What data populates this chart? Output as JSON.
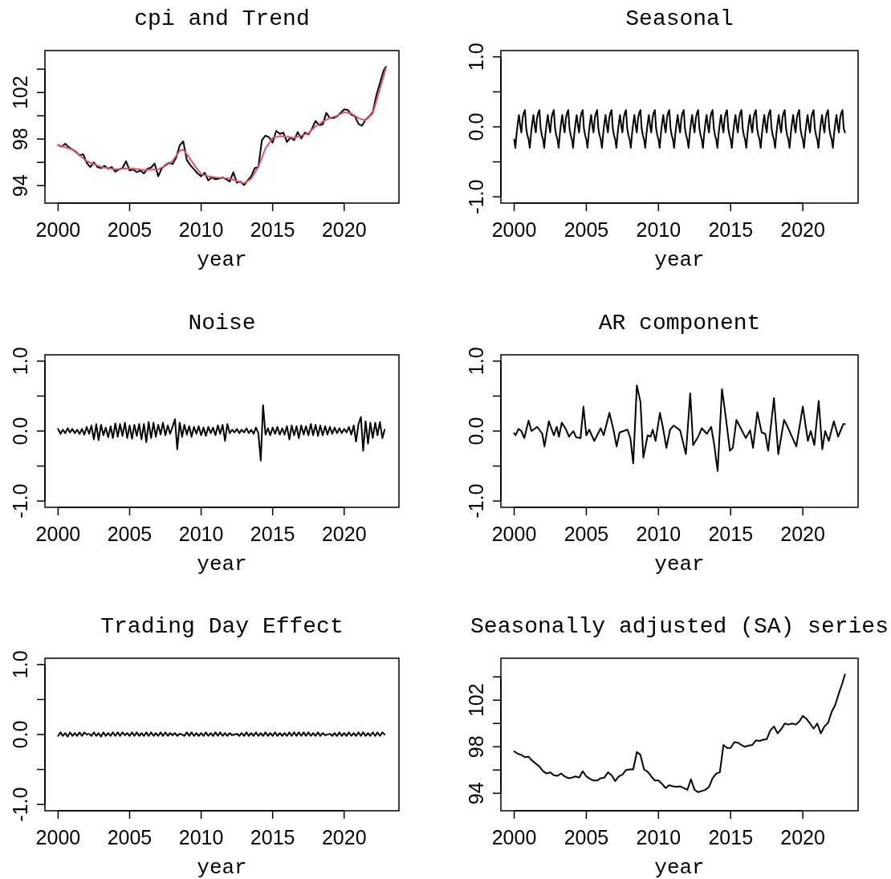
{
  "chart_data": [
    {
      "type": "line",
      "title": "cpi and Trend",
      "xlabel": "year",
      "xlim": [
        1999.08,
        2023.83
      ],
      "xticks": [
        2000,
        2005,
        2010,
        2015,
        2020
      ],
      "ylim": [
        92.5,
        105.6
      ],
      "yticks": [
        94,
        {
          "value": 96,
          "label": null
        },
        98,
        {
          "value": 100,
          "label": null
        },
        102,
        {
          "value": 104,
          "label": null
        }
      ],
      "series": [
        {
          "color": "#000000",
          "x": [
            2000,
            2000.25,
            2000.5,
            2000.75,
            2001,
            2001.25,
            2001.5,
            2001.75,
            2002,
            2002.25,
            2002.5,
            2002.75,
            2003,
            2003.25,
            2003.5,
            2003.75,
            2004,
            2004.25,
            2004.5,
            2004.75,
            2005,
            2005.25,
            2005.5,
            2005.75,
            2006,
            2006.25,
            2006.5,
            2006.75,
            2007,
            2007.25,
            2007.5,
            2007.75,
            2008,
            2008.25,
            2008.5,
            2008.75,
            2009,
            2009.25,
            2009.5,
            2009.75,
            2010,
            2010.25,
            2010.5,
            2010.75,
            2011,
            2011.25,
            2011.5,
            2011.75,
            2012,
            2012.25,
            2012.5,
            2012.75,
            2013,
            2013.25,
            2013.5,
            2013.75,
            2014,
            2014.25,
            2014.5,
            2014.75,
            2015,
            2015.25,
            2015.5,
            2015.75,
            2016,
            2016.25,
            2016.5,
            2016.75,
            2017,
            2017.25,
            2017.5,
            2017.75,
            2018,
            2018.25,
            2018.5,
            2018.75,
            2019,
            2019.25,
            2019.5,
            2019.75,
            2020,
            2020.25,
            2020.5,
            2020.75,
            2021,
            2021.25,
            2021.5,
            2021.75,
            2022,
            2022.25,
            2022.5,
            2022.75,
            2022.92
          ],
          "values": [
            97.47,
            97.35,
            97.6,
            97.3,
            97.1,
            96.9,
            96.6,
            96.7,
            95.95,
            95.6,
            96.0,
            95.6,
            95.5,
            95.7,
            95.45,
            95.6,
            95.2,
            95.4,
            95.5,
            96.1,
            95.3,
            95.4,
            95.15,
            95.3,
            95.05,
            95.45,
            95.55,
            95.9,
            94.8,
            95.5,
            95.75,
            95.95,
            95.85,
            96.4,
            97.45,
            97.8,
            96.2,
            95.75,
            95.4,
            95.05,
            94.8,
            95.1,
            94.45,
            94.7,
            94.55,
            94.6,
            94.7,
            94.55,
            94.35,
            95.15,
            94.25,
            94.35,
            94.05,
            94.45,
            94.8,
            95.5,
            95.6,
            97.9,
            98.3,
            98.15,
            97.7,
            98.7,
            98.45,
            98.55,
            97.75,
            98.15,
            97.9,
            98.6,
            98.05,
            98.55,
            98.4,
            98.9,
            99.55,
            99.2,
            99.25,
            100.25,
            99.8,
            99.8,
            99.95,
            100.25,
            100.55,
            100.5,
            100.1,
            99.95,
            99.3,
            99.15,
            99.65,
            99.95,
            100.3,
            101.75,
            102.8,
            103.85,
            104.2
          ]
        },
        {
          "color": "#df536b",
          "x": [
            2000,
            2001,
            2002,
            2003,
            2004,
            2005,
            2006,
            2007,
            2007.5,
            2008,
            2008.5,
            2008.75,
            2009,
            2009.5,
            2010,
            2010.5,
            2011,
            2012,
            2012.5,
            2013,
            2013.5,
            2014,
            2014.5,
            2015,
            2015.5,
            2016,
            2016.5,
            2017,
            2017.5,
            2018,
            2018.5,
            2019,
            2019.5,
            2020,
            2020.5,
            2021,
            2021.5,
            2022,
            2022.5,
            2022.92
          ],
          "values": [
            97.5,
            97.1,
            96.1,
            95.6,
            95.4,
            95.5,
            95.35,
            95.4,
            95.7,
            96.1,
            97.0,
            97.1,
            96.7,
            95.8,
            95.0,
            94.8,
            94.7,
            94.6,
            94.4,
            94.2,
            94.6,
            95.6,
            97.2,
            98.1,
            98.25,
            98.2,
            98.1,
            98.3,
            98.5,
            99.1,
            99.5,
            99.8,
            100.0,
            100.3,
            100.2,
            99.8,
            99.6,
            100.2,
            102.3,
            104.1
          ]
        }
      ]
    },
    {
      "type": "line",
      "title": "Seasonal",
      "xlabel": "year",
      "xlim": [
        1999.08,
        2023.83
      ],
      "xticks": [
        2000,
        2005,
        2010,
        2015,
        2020
      ],
      "ylim": [
        -1.09,
        1.09
      ],
      "yticks": [
        {
          "value": -1,
          "label": "-1.0"
        },
        {
          "value": -0.5,
          "label": null
        },
        {
          "value": 0,
          "label": "0.0"
        },
        {
          "value": 0.5,
          "label": null
        },
        {
          "value": 1,
          "label": "1.0"
        }
      ],
      "x": [
        2000,
        2000.083,
        2000.167,
        2000.25,
        2000.333,
        2000.417,
        2000.5,
        2000.583,
        2000.667,
        2000.75,
        2000.833,
        2000.917,
        2001,
        2001.083,
        2001.167,
        2001.25,
        2001.333,
        2001.417,
        2001.5,
        2001.583,
        2001.667,
        2001.75,
        2001.833,
        2001.917,
        2002,
        2002.083,
        2002.167,
        2002.25,
        2002.333,
        2002.417,
        2002.5,
        2002.583,
        2002.667,
        2002.75,
        2002.833,
        2002.917,
        2003,
        2003.083,
        2003.167,
        2003.25,
        2003.333,
        2003.417,
        2003.5,
        2003.583,
        2003.667,
        2003.75,
        2003.833,
        2003.917,
        2004,
        2004.083,
        2004.167,
        2004.25,
        2004.333,
        2004.417,
        2004.5,
        2004.583,
        2004.667,
        2004.75,
        2004.833,
        2004.917,
        2005,
        2005.083,
        2005.167,
        2005.25,
        2005.333,
        2005.417,
        2005.5,
        2005.583,
        2005.667,
        2005.75,
        2005.833,
        2005.917,
        2006,
        2006.083,
        2006.167,
        2006.25,
        2006.333,
        2006.417,
        2006.5,
        2006.583,
        2006.667,
        2006.75,
        2006.833,
        2006.917,
        2007,
        2007.083,
        2007.167,
        2007.25,
        2007.333,
        2007.417,
        2007.5,
        2007.583,
        2007.667,
        2007.75,
        2007.833,
        2007.917,
        2008,
        2008.083,
        2008.167,
        2008.25,
        2008.333,
        2008.417,
        2008.5,
        2008.583,
        2008.667,
        2008.75,
        2008.833,
        2008.917,
        2009,
        2009.083,
        2009.167,
        2009.25,
        2009.333,
        2009.417,
        2009.5,
        2009.583,
        2009.667,
        2009.75,
        2009.833,
        2009.917,
        2010,
        2010.083,
        2010.167,
        2010.25,
        2010.333,
        2010.417,
        2010.5,
        2010.583,
        2010.667,
        2010.75,
        2010.833,
        2010.917,
        2011,
        2011.083,
        2011.167,
        2011.25,
        2011.333,
        2011.417,
        2011.5,
        2011.583,
        2011.667,
        2011.75,
        2011.833,
        2011.917,
        2012,
        2012.083,
        2012.167,
        2012.25,
        2012.333,
        2012.417,
        2012.5,
        2012.583,
        2012.667,
        2012.75,
        2012.833,
        2012.917,
        2013,
        2013.083,
        2013.167,
        2013.25,
        2013.333,
        2013.417,
        2013.5,
        2013.583,
        2013.667,
        2013.75,
        2013.833,
        2013.917,
        2014,
        2014.083,
        2014.167,
        2014.25,
        2014.333,
        2014.417,
        2014.5,
        2014.583,
        2014.667,
        2014.75,
        2014.833,
        2014.917,
        2015,
        2015.083,
        2015.167,
        2015.25,
        2015.333,
        2015.417,
        2015.5,
        2015.583,
        2015.667,
        2015.75,
        2015.833,
        2015.917,
        2016,
        2016.083,
        2016.167,
        2016.25,
        2016.333,
        2016.417,
        2016.5,
        2016.583,
        2016.667,
        2016.75,
        2016.833,
        2016.917,
        2017,
        2017.083,
        2017.167,
        2017.25,
        2017.333,
        2017.417,
        2017.5,
        2017.583,
        2017.667,
        2017.75,
        2017.833,
        2017.917,
        2018,
        2018.083,
        2018.167,
        2018.25,
        2018.333,
        2018.417,
        2018.5,
        2018.583,
        2018.667,
        2018.75,
        2018.833,
        2018.917,
        2019,
        2019.083,
        2019.167,
        2019.25,
        2019.333,
        2019.417,
        2019.5,
        2019.583,
        2019.667,
        2019.75,
        2019.833,
        2019.917,
        2020,
        2020.083,
        2020.167,
        2020.25,
        2020.333,
        2020.417,
        2020.5,
        2020.583,
        2020.667,
        2020.75,
        2020.833,
        2020.917,
        2021,
        2021.083,
        2021.167,
        2021.25,
        2021.333,
        2021.417,
        2021.5,
        2021.583,
        2021.667,
        2021.75,
        2021.833,
        2021.917,
        2022,
        2022.083,
        2022.167,
        2022.25,
        2022.333,
        2022.417,
        2022.5,
        2022.583,
        2022.667,
        2022.75,
        2022.833,
        2022.917
      ],
      "series": [
        {
          "color": "#000000",
          "values": [
            -0.18,
            -0.3,
            -0.1,
            0.05,
            0.17,
            0.02,
            -0.08,
            0.12,
            0.2,
            0.24,
            -0.02,
            -0.12,
            -0.18,
            -0.3,
            -0.1,
            0.05,
            0.17,
            0.02,
            -0.08,
            0.12,
            0.2,
            0.24,
            -0.02,
            -0.12,
            -0.18,
            -0.3,
            -0.1,
            0.05,
            0.17,
            0.02,
            -0.08,
            0.12,
            0.2,
            0.24,
            -0.02,
            -0.12,
            -0.18,
            -0.3,
            -0.1,
            0.05,
            0.17,
            0.02,
            -0.08,
            0.12,
            0.2,
            0.24,
            -0.02,
            -0.12,
            -0.18,
            -0.3,
            -0.1,
            0.05,
            0.17,
            0.02,
            -0.08,
            0.12,
            0.2,
            0.24,
            -0.02,
            -0.12,
            -0.18,
            -0.3,
            -0.1,
            0.05,
            0.17,
            0.02,
            -0.08,
            0.12,
            0.2,
            0.24,
            -0.02,
            -0.12,
            -0.18,
            -0.3,
            -0.1,
            0.05,
            0.17,
            0.02,
            -0.08,
            0.12,
            0.2,
            0.24,
            -0.02,
            -0.12,
            -0.18,
            -0.3,
            -0.1,
            0.05,
            0.17,
            0.02,
            -0.08,
            0.12,
            0.2,
            0.24,
            -0.02,
            -0.12,
            -0.18,
            -0.3,
            -0.1,
            0.05,
            0.17,
            0.02,
            -0.08,
            0.12,
            0.2,
            0.24,
            -0.02,
            -0.12,
            -0.18,
            -0.3,
            -0.1,
            0.05,
            0.17,
            0.02,
            -0.08,
            0.12,
            0.2,
            0.24,
            -0.02,
            -0.12,
            -0.18,
            -0.3,
            -0.1,
            0.05,
            0.17,
            0.02,
            -0.08,
            0.12,
            0.2,
            0.24,
            -0.02,
            -0.12,
            -0.18,
            -0.3,
            -0.1,
            0.05,
            0.17,
            0.02,
            -0.08,
            0.12,
            0.2,
            0.24,
            -0.02,
            -0.12,
            -0.18,
            -0.3,
            -0.1,
            0.05,
            0.17,
            0.02,
            -0.08,
            0.12,
            0.2,
            0.24,
            -0.02,
            -0.12,
            -0.18,
            -0.3,
            -0.1,
            0.05,
            0.17,
            0.02,
            -0.08,
            0.12,
            0.2,
            0.24,
            -0.02,
            -0.12,
            -0.18,
            -0.3,
            -0.1,
            0.05,
            0.17,
            0.02,
            -0.08,
            0.12,
            0.2,
            0.24,
            -0.02,
            -0.12,
            -0.18,
            -0.3,
            -0.1,
            0.05,
            0.17,
            0.02,
            -0.08,
            0.12,
            0.2,
            0.24,
            -0.02,
            -0.12,
            -0.18,
            -0.3,
            -0.1,
            0.05,
            0.17,
            0.02,
            -0.08,
            0.12,
            0.2,
            0.24,
            -0.02,
            -0.12,
            -0.18,
            -0.3,
            -0.1,
            0.05,
            0.17,
            0.02,
            -0.08,
            0.12,
            0.2,
            0.24,
            -0.02,
            -0.12,
            -0.18,
            -0.3,
            -0.1,
            0.05,
            0.17,
            0.02,
            -0.08,
            0.12,
            0.2,
            0.24,
            -0.02,
            -0.12,
            -0.18,
            -0.3,
            -0.1,
            0.05,
            0.17,
            0.02,
            -0.08,
            0.12,
            0.2,
            0.24,
            -0.02,
            -0.12,
            -0.18,
            -0.3,
            -0.1,
            0.05,
            0.17,
            0.02,
            -0.08,
            0.12,
            0.2,
            0.24,
            -0.02,
            -0.12,
            -0.18,
            -0.3,
            -0.1,
            0.05,
            0.17,
            0.02,
            -0.08,
            0.12,
            0.2,
            0.24,
            -0.02,
            -0.12,
            -0.18,
            -0.3,
            -0.1,
            0.05,
            0.17,
            0.02,
            -0.08,
            0.12,
            0.2,
            0.24,
            -0.02,
            -0.08
          ]
        }
      ]
    },
    {
      "type": "line",
      "title": "Noise",
      "xlabel": "year",
      "xlim": [
        1999.08,
        2023.83
      ],
      "xticks": [
        2000,
        2005,
        2010,
        2015,
        2020
      ],
      "ylim": [
        -1.09,
        1.09
      ],
      "yticks": [
        {
          "value": -1,
          "label": "-1.0"
        },
        {
          "value": -0.5,
          "label": null
        },
        {
          "value": 0,
          "label": "0.0"
        },
        {
          "value": 0.5,
          "label": null
        },
        {
          "value": 1,
          "label": "1.0"
        }
      ],
      "x": [
        2000,
        2000.17,
        2000.33,
        2000.5,
        2000.67,
        2000.83,
        2001,
        2001.17,
        2001.33,
        2001.5,
        2001.67,
        2001.83,
        2002,
        2002.17,
        2002.33,
        2002.5,
        2002.67,
        2002.83,
        2003,
        2003.17,
        2003.33,
        2003.5,
        2003.67,
        2003.83,
        2004,
        2004.17,
        2004.33,
        2004.5,
        2004.67,
        2004.83,
        2005,
        2005.17,
        2005.33,
        2005.5,
        2005.67,
        2005.83,
        2006,
        2006.17,
        2006.33,
        2006.5,
        2006.67,
        2006.83,
        2007,
        2007.17,
        2007.33,
        2007.5,
        2007.67,
        2007.83,
        2008,
        2008.17,
        2008.33,
        2008.5,
        2008.67,
        2008.83,
        2009,
        2009.17,
        2009.33,
        2009.5,
        2009.67,
        2009.83,
        2010,
        2010.17,
        2010.33,
        2010.5,
        2010.67,
        2010.83,
        2011,
        2011.17,
        2011.33,
        2011.5,
        2011.67,
        2011.83,
        2012,
        2012.17,
        2012.33,
        2012.5,
        2012.67,
        2012.83,
        2013,
        2013.17,
        2013.33,
        2013.5,
        2013.67,
        2013.83,
        2014,
        2014.17,
        2014.33,
        2014.5,
        2014.67,
        2014.83,
        2015,
        2015.17,
        2015.33,
        2015.5,
        2015.67,
        2015.83,
        2016,
        2016.17,
        2016.33,
        2016.5,
        2016.67,
        2016.83,
        2017,
        2017.17,
        2017.33,
        2017.5,
        2017.67,
        2017.83,
        2018,
        2018.17,
        2018.33,
        2018.5,
        2018.67,
        2018.83,
        2019,
        2019.17,
        2019.33,
        2019.5,
        2019.67,
        2019.83,
        2020,
        2020.17,
        2020.33,
        2020.5,
        2020.67,
        2020.83,
        2021,
        2021.17,
        2021.33,
        2021.5,
        2021.67,
        2021.83,
        2022,
        2022.17,
        2022.33,
        2022.5,
        2022.67,
        2022.83
      ],
      "series": [
        {
          "color": "#000000",
          "values": [
            0.03,
            -0.04,
            0.02,
            -0.03,
            0.04,
            -0.02,
            0.03,
            -0.03,
            0.02,
            -0.04,
            0.03,
            -0.05,
            0.06,
            -0.04,
            0.08,
            -0.12,
            0.1,
            -0.13,
            0.09,
            -0.06,
            0.05,
            -0.09,
            0.07,
            -0.1,
            0.11,
            -0.08,
            0.1,
            -0.07,
            0.12,
            -0.1,
            0.08,
            -0.11,
            0.09,
            -0.07,
            0.1,
            -0.12,
            0.1,
            -0.16,
            0.13,
            -0.1,
            0.12,
            -0.08,
            0.09,
            -0.05,
            0.12,
            -0.06,
            0.08,
            -0.04,
            0.06,
            0.17,
            -0.26,
            0.12,
            -0.08,
            0.09,
            -0.05,
            0.07,
            -0.08,
            0.06,
            -0.04,
            0.07,
            -0.06,
            0.05,
            -0.07,
            0.06,
            -0.03,
            0.05,
            -0.06,
            0.08,
            -0.04,
            0.09,
            -0.14,
            0.1,
            -0.03,
            0.02,
            -0.02,
            0.03,
            -0.03,
            0.02,
            -0.02,
            0.04,
            -0.03,
            0.02,
            -0.04,
            0.05,
            -0.03,
            -0.42,
            0.37,
            -0.05,
            0.04,
            -0.06,
            0.05,
            -0.04,
            0.06,
            -0.05,
            0.04,
            -0.05,
            0.07,
            -0.12,
            0.08,
            -0.06,
            0.07,
            -0.1,
            0.08,
            -0.05,
            0.07,
            -0.06,
            0.1,
            -0.06,
            0.09,
            -0.07,
            0.08,
            -0.06,
            0.07,
            -0.05,
            0.06,
            -0.04,
            0.05,
            -0.03,
            0.04,
            -0.03,
            0.03,
            -0.02,
            0.06,
            -0.05,
            0.08,
            -0.15,
            0.1,
            0.2,
            -0.28,
            0.14,
            -0.18,
            0.12,
            -0.1,
            0.12,
            -0.06,
            0.13,
            -0.1,
            0.02
          ]
        }
      ]
    },
    {
      "type": "line",
      "title": "AR component",
      "xlabel": "year",
      "xlim": [
        1999.08,
        2023.83
      ],
      "xticks": [
        2000,
        2005,
        2010,
        2015,
        2020
      ],
      "ylim": [
        -1.09,
        1.09
      ],
      "yticks": [
        {
          "value": -1,
          "label": "-1.0"
        },
        {
          "value": -0.5,
          "label": null
        },
        {
          "value": 0,
          "label": "0.0"
        },
        {
          "value": 0.5,
          "label": null
        },
        {
          "value": 1,
          "label": "1.0"
        }
      ],
      "series": [
        {
          "color": "#000000",
          "x": [
            2000,
            2000.1,
            2000.3,
            2000.5,
            2000.7,
            2001,
            2001.2,
            2001.6,
            2001.95,
            2002.1,
            2002.4,
            2002.75,
            2002.95,
            2003.1,
            2003.3,
            2003.6,
            2003.8,
            2004.1,
            2004.3,
            2004.6,
            2004.8,
            2005,
            2005.2,
            2005.55,
            2006,
            2006.2,
            2006.6,
            2006.9,
            2007.1,
            2007.3,
            2007.85,
            2008.05,
            2008.25,
            2008.5,
            2008.75,
            2008.95,
            2009.25,
            2009.45,
            2009.6,
            2009.8,
            2010.1,
            2010.3,
            2010.55,
            2010.8,
            2011.05,
            2011.5,
            2011.9,
            2012.2,
            2012.4,
            2012.75,
            2013,
            2013.35,
            2013.65,
            2013.85,
            2014.1,
            2014.4,
            2014.65,
            2014.95,
            2015.15,
            2015.4,
            2015.75,
            2016.05,
            2016.35,
            2016.55,
            2016.85,
            2017.15,
            2017.4,
            2017.6,
            2018,
            2018.3,
            2018.7,
            2018.95,
            2019.2,
            2019.55,
            2020,
            2020.35,
            2020.55,
            2020.8,
            2021.1,
            2021.35,
            2021.55,
            2021.8,
            2022.15,
            2022.45,
            2022.8,
            2022.92
          ],
          "values": [
            -0.03,
            -0.06,
            0.03,
            0.0,
            -0.1,
            0.15,
            0.0,
            0.06,
            -0.04,
            -0.22,
            0.14,
            -0.06,
            0.06,
            -0.08,
            0.12,
            0.02,
            -0.08,
            0.0,
            -0.09,
            -0.1,
            0.35,
            -0.06,
            0.02,
            -0.14,
            0.04,
            -0.06,
            0.26,
            0.0,
            -0.22,
            -0.02,
            0.02,
            -0.1,
            -0.46,
            0.65,
            0.42,
            -0.38,
            -0.06,
            -0.08,
            0.02,
            -0.14,
            0.26,
            0.06,
            -0.24,
            0.02,
            0.08,
            0.01,
            -0.33,
            0.54,
            -0.2,
            -0.08,
            0.04,
            -0.04,
            0.06,
            -0.18,
            -0.57,
            0.6,
            0.22,
            -0.28,
            -0.24,
            0.16,
            0.02,
            -0.1,
            0.01,
            -0.24,
            0.27,
            -0.02,
            -0.04,
            -0.28,
            0.47,
            -0.33,
            0.16,
            0.06,
            -0.06,
            -0.22,
            0.35,
            -0.14,
            0.0,
            -0.2,
            0.43,
            -0.26,
            0.0,
            -0.14,
            0.14,
            -0.08,
            0.1,
            0.1
          ]
        }
      ]
    },
    {
      "type": "line",
      "title": "Trading Day Effect",
      "xlabel": "year",
      "xlim": [
        1999.08,
        2023.83
      ],
      "xticks": [
        2000,
        2005,
        2010,
        2015,
        2020
      ],
      "ylim": [
        -1.09,
        1.09
      ],
      "yticks": [
        {
          "value": -1,
          "label": "-1.0"
        },
        {
          "value": -0.5,
          "label": null
        },
        {
          "value": 0,
          "label": "0.0"
        },
        {
          "value": 0.5,
          "label": null
        },
        {
          "value": 1,
          "label": "1.0"
        }
      ],
      "x": [
        2000,
        2000.17,
        2000.33,
        2000.5,
        2000.67,
        2000.83,
        2001,
        2001.17,
        2001.33,
        2001.5,
        2001.67,
        2001.83,
        2002,
        2002.17,
        2002.33,
        2002.5,
        2002.67,
        2002.83,
        2003,
        2003.17,
        2003.33,
        2003.5,
        2003.67,
        2003.83,
        2004,
        2004.17,
        2004.33,
        2004.5,
        2004.67,
        2004.83,
        2005,
        2005.17,
        2005.33,
        2005.5,
        2005.67,
        2005.83,
        2006,
        2006.17,
        2006.33,
        2006.5,
        2006.67,
        2006.83,
        2007,
        2007.17,
        2007.33,
        2007.5,
        2007.67,
        2007.83,
        2008,
        2008.17,
        2008.33,
        2008.5,
        2008.67,
        2008.83,
        2009,
        2009.17,
        2009.33,
        2009.5,
        2009.67,
        2009.83,
        2010,
        2010.17,
        2010.33,
        2010.5,
        2010.67,
        2010.83,
        2011,
        2011.17,
        2011.33,
        2011.5,
        2011.67,
        2011.83,
        2012,
        2012.17,
        2012.33,
        2012.5,
        2012.67,
        2012.83,
        2013,
        2013.17,
        2013.33,
        2013.5,
        2013.67,
        2013.83,
        2014,
        2014.17,
        2014.33,
        2014.5,
        2014.67,
        2014.83,
        2015,
        2015.17,
        2015.33,
        2015.5,
        2015.67,
        2015.83,
        2016,
        2016.17,
        2016.33,
        2016.5,
        2016.67,
        2016.83,
        2017,
        2017.17,
        2017.33,
        2017.5,
        2017.67,
        2017.83,
        2018,
        2018.17,
        2018.33,
        2018.5,
        2018.67,
        2018.83,
        2019,
        2019.17,
        2019.33,
        2019.5,
        2019.67,
        2019.83,
        2020,
        2020.17,
        2020.33,
        2020.5,
        2020.67,
        2020.83,
        2021,
        2021.17,
        2021.33,
        2021.5,
        2021.67,
        2021.83,
        2022,
        2022.17,
        2022.33,
        2022.5,
        2022.67,
        2022.83
      ],
      "series": [
        {
          "color": "#000000",
          "values": [
            -0.02,
            0.03,
            -0.02,
            0.02,
            -0.03,
            0.03,
            -0.02,
            0.02,
            -0.02,
            0.03,
            -0.02,
            0.03,
            0.0,
            0.01,
            -0.02,
            0.03,
            -0.02,
            0.02,
            -0.03,
            0.03,
            -0.02,
            0.02,
            -0.02,
            0.03,
            -0.02,
            0.03,
            -0.02,
            0.03,
            -0.01,
            0.02,
            -0.02,
            0.03,
            -0.02,
            0.03,
            -0.02,
            0.02,
            -0.02,
            0.03,
            -0.02,
            0.03,
            -0.02,
            0.02,
            -0.02,
            0.03,
            -0.02,
            0.03,
            -0.02,
            0.02,
            -0.01,
            0.02,
            -0.02,
            0.01,
            0.0,
            -0.02,
            0.03,
            -0.02,
            0.03,
            -0.02,
            0.02,
            -0.02,
            0.02,
            -0.02,
            0.03,
            -0.02,
            0.02,
            -0.02,
            0.03,
            -0.02,
            0.03,
            -0.02,
            0.02,
            -0.02,
            0.02,
            -0.01,
            0.0,
            0.01,
            -0.02,
            0.02,
            -0.02,
            0.03,
            -0.02,
            0.02,
            -0.02,
            0.03,
            -0.02,
            0.02,
            -0.02,
            0.03,
            -0.02,
            0.02,
            -0.02,
            0.03,
            -0.02,
            0.02,
            -0.02,
            0.02,
            -0.02,
            0.03,
            -0.02,
            0.03,
            -0.02,
            0.03,
            -0.02,
            0.03,
            -0.02,
            0.03,
            -0.02,
            0.02,
            -0.02,
            0.03,
            -0.02,
            0.02,
            -0.01,
            0.0,
            0.01,
            -0.02,
            0.02,
            -0.02,
            0.03,
            -0.02,
            0.02,
            -0.02,
            0.03,
            -0.02,
            0.02,
            -0.02,
            0.03,
            -0.02,
            0.03,
            -0.02,
            0.02,
            -0.02,
            0.03,
            -0.02,
            0.03,
            -0.02,
            0.03,
            0.0
          ]
        }
      ]
    },
    {
      "type": "line",
      "title": "Seasonally adjusted (SA) series",
      "xlabel": "year",
      "xlim": [
        1999.08,
        2023.83
      ],
      "xticks": [
        2000,
        2005,
        2010,
        2015,
        2020
      ],
      "ylim": [
        92.5,
        105.6
      ],
      "yticks": [
        94,
        {
          "value": 96,
          "label": null
        },
        98,
        {
          "value": 100,
          "label": null
        },
        102,
        {
          "value": 104,
          "label": null
        }
      ],
      "series": [
        {
          "color": "#000000",
          "x": [
            2000,
            2000.25,
            2000.5,
            2000.75,
            2001,
            2001.25,
            2001.5,
            2001.75,
            2002,
            2002.25,
            2002.5,
            2002.75,
            2003,
            2003.25,
            2003.5,
            2003.75,
            2004,
            2004.25,
            2004.5,
            2004.75,
            2005,
            2005.25,
            2005.5,
            2005.75,
            2006,
            2006.25,
            2006.5,
            2006.75,
            2007,
            2007.25,
            2007.5,
            2007.75,
            2008,
            2008.25,
            2008.5,
            2008.75,
            2009,
            2009.25,
            2009.5,
            2009.75,
            2010,
            2010.25,
            2010.5,
            2010.75,
            2011,
            2011.25,
            2011.5,
            2011.75,
            2012,
            2012.25,
            2012.5,
            2012.75,
            2013,
            2013.25,
            2013.5,
            2013.75,
            2014,
            2014.25,
            2014.5,
            2014.75,
            2015,
            2015.25,
            2015.5,
            2015.75,
            2016,
            2016.25,
            2016.5,
            2016.75,
            2017,
            2017.25,
            2017.5,
            2017.75,
            2018,
            2018.25,
            2018.5,
            2018.75,
            2019,
            2019.25,
            2019.5,
            2019.75,
            2020,
            2020.25,
            2020.5,
            2020.75,
            2021,
            2021.25,
            2021.5,
            2021.75,
            2022,
            2022.25,
            2022.5,
            2022.75,
            2022.92
          ],
          "values": [
            97.6,
            97.4,
            97.3,
            97.1,
            97.15,
            96.8,
            96.55,
            96.3,
            95.9,
            95.7,
            95.8,
            95.55,
            95.5,
            95.7,
            95.45,
            95.3,
            95.35,
            95.45,
            95.35,
            95.9,
            95.45,
            95.25,
            95.1,
            95.1,
            95.3,
            95.35,
            95.8,
            95.55,
            95.05,
            95.45,
            95.6,
            96.0,
            96.05,
            96.05,
            97.55,
            97.3,
            96.05,
            95.85,
            95.45,
            95.1,
            95.1,
            94.8,
            94.45,
            94.7,
            94.6,
            94.55,
            94.6,
            94.45,
            94.3,
            95.2,
            94.3,
            94.1,
            94.2,
            94.3,
            94.55,
            95.3,
            95.7,
            95.8,
            98.15,
            97.9,
            97.9,
            98.4,
            98.35,
            98.15,
            98.0,
            98.1,
            98.15,
            98.55,
            98.5,
            98.6,
            98.65,
            99.4,
            99.75,
            99.15,
            99.5,
            100.0,
            99.9,
            100.0,
            99.9,
            100.15,
            100.65,
            100.4,
            100.0,
            99.55,
            100.0,
            99.15,
            99.75,
            100.05,
            101.0,
            101.6,
            102.6,
            103.5,
            104.2
          ]
        }
      ]
    }
  ]
}
